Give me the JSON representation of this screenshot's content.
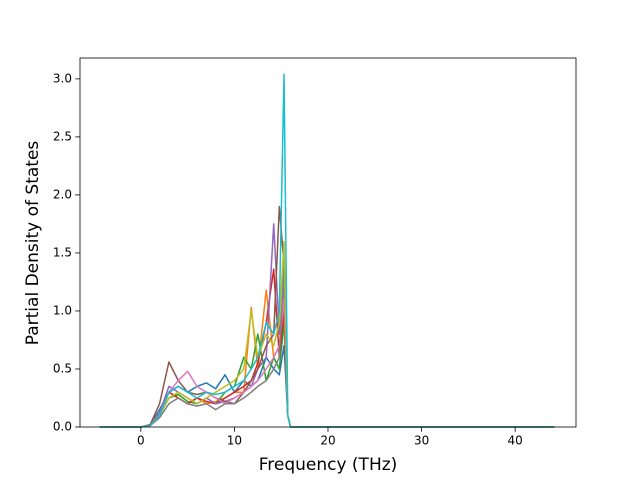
{
  "chart_data": {
    "type": "line",
    "x_label": "Frequency (THz)",
    "y_label": "Partial Density of States",
    "x": [
      -4.4,
      0,
      1,
      2,
      3,
      4,
      5,
      6,
      7,
      8,
      9,
      10,
      11,
      11.8,
      12.5,
      13.4,
      14.2,
      14.8,
      15.3,
      15.7,
      16,
      44.2
    ],
    "series": [
      {
        "color": "#1f77b4",
        "values": [
          0,
          0,
          0.02,
          0.15,
          0.3,
          0.35,
          0.3,
          0.35,
          0.38,
          0.33,
          0.45,
          0.3,
          0.4,
          0.35,
          0.4,
          0.6,
          0.5,
          0.45,
          0.7,
          0.1,
          0,
          0
        ]
      },
      {
        "color": "#ff7f0e",
        "values": [
          0,
          0,
          0.02,
          0.12,
          0.3,
          0.25,
          0.2,
          0.25,
          0.2,
          0.22,
          0.25,
          0.3,
          0.3,
          1.03,
          0.5,
          1.18,
          0.6,
          0.7,
          1.2,
          0.1,
          0,
          0
        ]
      },
      {
        "color": "#2ca02c",
        "values": [
          0,
          0,
          0.01,
          0.1,
          0.25,
          0.28,
          0.22,
          0.2,
          0.25,
          0.2,
          0.3,
          0.35,
          0.6,
          0.5,
          0.8,
          0.4,
          0.6,
          0.5,
          0.9,
          0.1,
          0,
          0
        ]
      },
      {
        "color": "#d62728",
        "values": [
          0,
          0,
          0.01,
          0.1,
          0.3,
          0.25,
          0.2,
          0.25,
          0.22,
          0.2,
          0.25,
          0.3,
          0.35,
          0.4,
          0.55,
          0.9,
          1.36,
          0.6,
          1.0,
          0.1,
          0,
          0
        ]
      },
      {
        "color": "#9467bd",
        "values": [
          0,
          0,
          0.01,
          0.12,
          0.35,
          0.3,
          0.25,
          0.2,
          0.25,
          0.2,
          0.22,
          0.25,
          0.3,
          0.35,
          0.5,
          0.6,
          1.75,
          0.8,
          1.2,
          0.1,
          0,
          0
        ]
      },
      {
        "color": "#8c564b",
        "values": [
          0,
          0,
          0.02,
          0.2,
          0.56,
          0.4,
          0.3,
          0.28,
          0.3,
          0.25,
          0.22,
          0.2,
          0.3,
          0.4,
          0.5,
          0.7,
          0.8,
          1.9,
          1.4,
          0.1,
          0,
          0
        ]
      },
      {
        "color": "#e377c2",
        "values": [
          0,
          0,
          0.01,
          0.1,
          0.3,
          0.4,
          0.48,
          0.35,
          0.3,
          0.25,
          0.2,
          0.25,
          0.3,
          0.35,
          0.4,
          0.5,
          0.6,
          0.7,
          1.1,
          0.1,
          0,
          0
        ]
      },
      {
        "color": "#7f7f7f",
        "values": [
          0,
          0,
          0.01,
          0.08,
          0.2,
          0.25,
          0.2,
          0.18,
          0.2,
          0.15,
          0.2,
          0.2,
          0.25,
          0.3,
          0.35,
          0.4,
          0.5,
          0.6,
          1.4,
          0.1,
          0,
          0
        ]
      },
      {
        "color": "#bcbd22",
        "values": [
          0,
          0,
          0.01,
          0.1,
          0.25,
          0.3,
          0.25,
          0.2,
          0.25,
          0.3,
          0.35,
          0.4,
          0.5,
          1.0,
          0.6,
          0.8,
          0.7,
          0.9,
          1.6,
          0.1,
          0,
          0
        ]
      },
      {
        "color": "#17becf",
        "values": [
          0,
          0,
          0.01,
          0.1,
          0.3,
          0.35,
          0.3,
          0.25,
          0.3,
          0.28,
          0.3,
          0.35,
          0.4,
          0.5,
          0.6,
          0.9,
          0.8,
          1.0,
          3.04,
          0.1,
          0,
          0
        ]
      }
    ],
    "xlim": [
      -6.5,
      46.5
    ],
    "ylim": [
      0,
      3.18
    ],
    "xticks": [
      0,
      10,
      20,
      30,
      40
    ],
    "yticks": [
      {
        "value": 0,
        "label": "0.0"
      },
      0.5,
      {
        "value": 1,
        "label": "1.0"
      },
      1.5,
      {
        "value": 2,
        "label": "2.0"
      },
      2.5,
      {
        "value": 3,
        "label": "3.0"
      }
    ],
    "grid": false
  }
}
